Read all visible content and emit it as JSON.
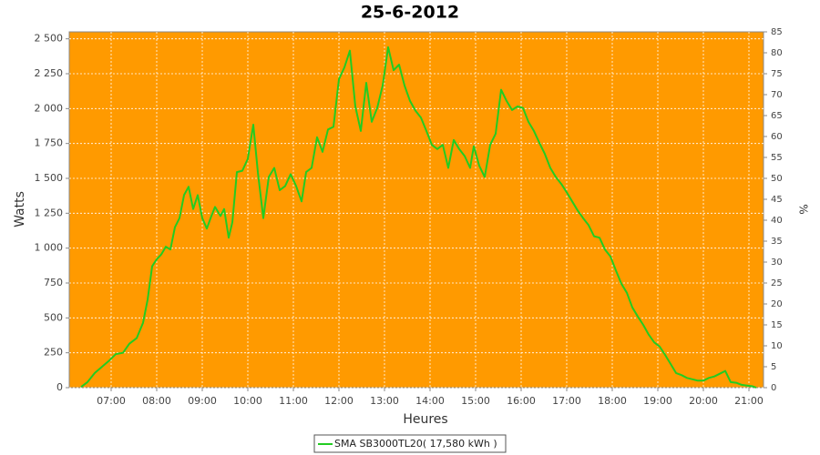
{
  "chart_data": {
    "type": "line",
    "title": "25-6-2012",
    "x_label": "Heures",
    "y_label": "Watts",
    "y2_label": "%",
    "x": [
      6.34,
      6.48,
      6.64,
      6.8,
      6.96,
      7.1,
      7.26,
      7.4,
      7.56,
      7.7,
      7.8,
      7.9,
      8.0,
      8.1,
      8.2,
      8.3,
      8.4,
      8.5,
      8.6,
      8.7,
      8.8,
      8.9,
      9.0,
      9.1,
      9.2,
      9.28,
      9.4,
      9.48,
      9.58,
      9.66,
      9.76,
      9.88,
      10.0,
      10.12,
      10.22,
      10.34,
      10.46,
      10.58,
      10.7,
      10.82,
      10.94,
      11.06,
      11.18,
      11.28,
      11.4,
      11.52,
      11.64,
      11.76,
      11.88,
      12.0,
      12.12,
      12.24,
      12.36,
      12.48,
      12.6,
      12.72,
      12.84,
      12.96,
      13.08,
      13.2,
      13.32,
      13.44,
      13.56,
      13.68,
      13.8,
      13.92,
      14.04,
      14.16,
      14.28,
      14.4,
      14.52,
      14.64,
      14.76,
      14.88,
      14.96,
      15.08,
      15.2,
      15.32,
      15.44,
      15.56,
      15.68,
      15.8,
      15.92,
      16.04,
      16.16,
      16.28,
      16.4,
      16.52,
      16.64,
      16.76,
      16.88,
      17.0,
      17.12,
      17.24,
      17.36,
      17.48,
      17.6,
      17.72,
      17.84,
      17.96,
      18.08,
      18.2,
      18.32,
      18.44,
      18.56,
      18.68,
      18.8,
      18.92,
      19.04,
      19.16,
      19.28,
      19.4,
      19.52,
      19.64,
      19.76,
      19.88,
      20.0,
      20.12,
      20.24,
      20.36,
      20.48,
      20.6,
      20.72,
      20.84,
      20.96,
      21.08,
      21.16
    ],
    "series": [
      {
        "name": "SMA SB3000TL20( 17,580 kWh )",
        "color": "#22cc22",
        "values": [
          5,
          40,
          105,
          150,
          195,
          240,
          250,
          315,
          355,
          465,
          630,
          870,
          920,
          955,
          1010,
          990,
          1150,
          1215,
          1380,
          1440,
          1280,
          1380,
          1215,
          1140,
          1230,
          1295,
          1230,
          1280,
          1075,
          1185,
          1545,
          1555,
          1640,
          1885,
          1545,
          1215,
          1510,
          1575,
          1415,
          1445,
          1530,
          1445,
          1335,
          1545,
          1575,
          1795,
          1690,
          1850,
          1870,
          2210,
          2295,
          2415,
          2015,
          1840,
          2185,
          1905,
          2005,
          2165,
          2440,
          2275,
          2315,
          2165,
          2055,
          1985,
          1935,
          1840,
          1740,
          1710,
          1740,
          1575,
          1775,
          1710,
          1660,
          1575,
          1730,
          1590,
          1510,
          1740,
          1820,
          2135,
          2055,
          1990,
          2015,
          2005,
          1905,
          1840,
          1755,
          1675,
          1575,
          1510,
          1460,
          1400,
          1335,
          1270,
          1215,
          1165,
          1085,
          1075,
          990,
          940,
          840,
          745,
          680,
          575,
          510,
          450,
          380,
          325,
          295,
          235,
          170,
          105,
          90,
          70,
          60,
          50,
          50,
          70,
          80,
          100,
          120,
          40,
          35,
          20,
          15,
          10,
          0
        ]
      }
    ],
    "xlim": [
      6.08,
      21.32
    ],
    "xticks": [
      {
        "value": 7,
        "label": "07:00"
      },
      {
        "value": 8,
        "label": "08:00"
      },
      {
        "value": 9,
        "label": "09:00"
      },
      {
        "value": 10,
        "label": "10:00"
      },
      {
        "value": 11,
        "label": "11:00"
      },
      {
        "value": 12,
        "label": "12:00"
      },
      {
        "value": 13,
        "label": "13:00"
      },
      {
        "value": 14,
        "label": "14:00"
      },
      {
        "value": 15,
        "label": "15:00"
      },
      {
        "value": 16,
        "label": "16:00"
      },
      {
        "value": 17,
        "label": "17:00"
      },
      {
        "value": 18,
        "label": "18:00"
      },
      {
        "value": 19,
        "label": "19:00"
      },
      {
        "value": 20,
        "label": "20:00"
      },
      {
        "value": 21,
        "label": "21:00"
      }
    ],
    "ylim": [
      0,
      2550
    ],
    "yticks": [
      0,
      {
        "value": 250,
        "label": "250"
      },
      {
        "value": 500,
        "label": "500"
      },
      {
        "value": 750,
        "label": "750"
      },
      {
        "value": 1000,
        "label": "1 000"
      },
      {
        "value": 1250,
        "label": "1 250"
      },
      {
        "value": 1500,
        "label": "1 500"
      },
      {
        "value": 1750,
        "label": "1 750"
      },
      {
        "value": 2000,
        "label": "2 000"
      },
      {
        "value": 2250,
        "label": "2 250"
      },
      {
        "value": 2500,
        "label": "2 500"
      }
    ],
    "y2lim": [
      0,
      85
    ],
    "y2ticks": [
      0,
      5,
      10,
      15,
      20,
      25,
      30,
      35,
      40,
      45,
      50,
      55,
      60,
      65,
      70,
      75,
      80,
      85
    ],
    "grid": true,
    "background": "#ff9a00",
    "legend": "bottom"
  }
}
